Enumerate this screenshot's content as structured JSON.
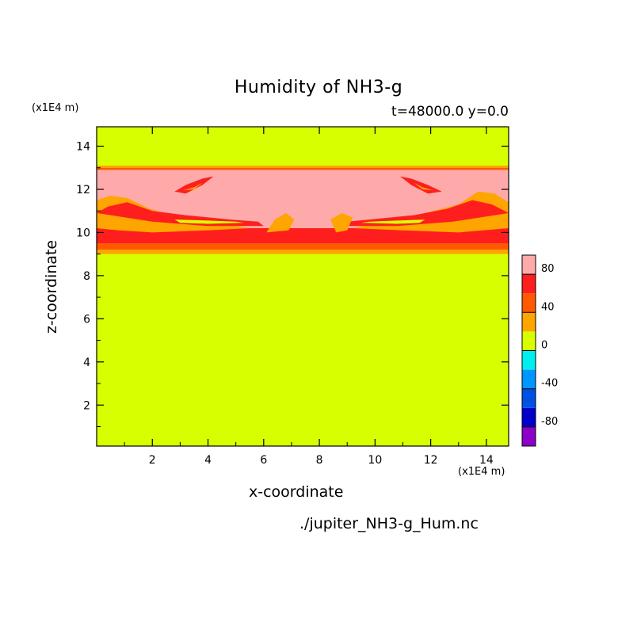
{
  "title": "Humidity of NH3-g",
  "annotation": "t=48000.0 y=0.0",
  "source_file": "./jupiter_NH3-g_Hum.nc",
  "chart_data": {
    "type": "heatmap",
    "title": "Humidity of NH3-g",
    "xlabel": "x-coordinate",
    "ylabel": "z-coordinate",
    "x_unit": "(x1E4 m)",
    "y_unit": "(x1E4 m)",
    "xlim": [
      0.0,
      14.8
    ],
    "ylim": [
      0.1,
      14.9
    ],
    "x_ticks": [
      2,
      4,
      6,
      8,
      10,
      12,
      14
    ],
    "y_ticks": [
      2,
      4,
      6,
      8,
      10,
      12,
      14
    ],
    "colorbar": {
      "levels": [
        -100,
        -80,
        -60,
        -40,
        -20,
        0,
        20,
        40,
        60,
        80,
        100
      ],
      "tick_labels": [
        80,
        40,
        0,
        -40,
        -80
      ],
      "colors": [
        "#8c00c8",
        "#0000c8",
        "#0050e6",
        "#0096ff",
        "#00eeee",
        "#d7ff00",
        "#ffa500",
        "#ff5a00",
        "#ff1e1e",
        "#ffaaaa"
      ]
    },
    "background_value_range": [
      0,
      20
    ],
    "layers": [
      {
        "z_range": [
          9.0,
          9.2
        ],
        "value_range": [
          20,
          40
        ]
      },
      {
        "z_range": [
          9.2,
          9.5
        ],
        "value_range": [
          40,
          60
        ]
      },
      {
        "z_range": [
          9.5,
          10.2
        ],
        "value_range": [
          60,
          80
        ]
      },
      {
        "z_range": [
          10.2,
          12.9
        ],
        "value_range": [
          80,
          100
        ]
      },
      {
        "z_range": [
          12.9,
          13.0
        ],
        "value_range": [
          40,
          60
        ]
      },
      {
        "z_range": [
          13.0,
          13.1
        ],
        "value_range": [
          20,
          40
        ]
      }
    ]
  },
  "colors": {
    "band_20_40": "#ffa500",
    "band_40_60": "#ff5a00",
    "band_60_80": "#ff1e1e",
    "band_80_100": "#ffaaaa",
    "background": "#d7ff00"
  }
}
